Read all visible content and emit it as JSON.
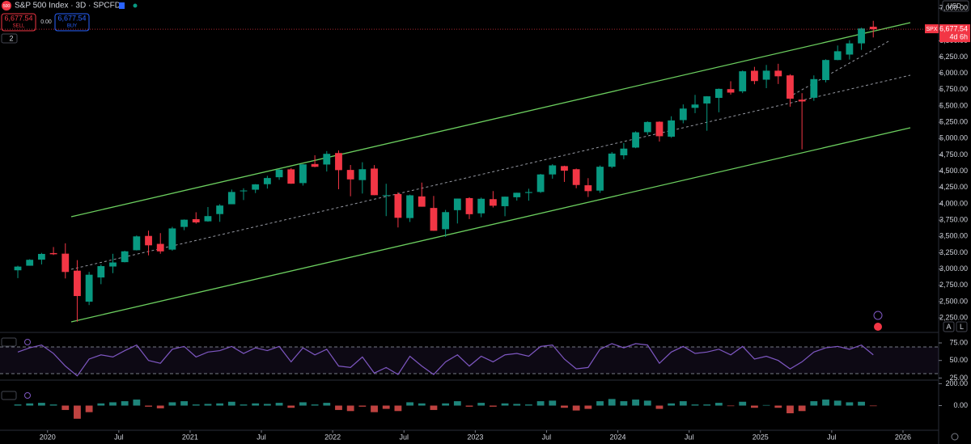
{
  "header": {
    "logo": "500",
    "title": "S&P 500 Index · 3D · SPCFD",
    "sell_price": "6,677.54",
    "sell": "SELL",
    "spread": "0.00",
    "buy_price": "6,677.54",
    "buy": "BUY",
    "indicator_count": "2",
    "currency": "USD",
    "symbol_tag": "SPX",
    "last_price": "6,677.54",
    "countdown": "4d 6h",
    "scale_auto": "A",
    "scale_log": "L"
  },
  "chart_data": [
    {
      "type": "candlestick",
      "up_color": "#089981",
      "down_color": "#f23645",
      "x": [
        "2019-10",
        "2019-11",
        "2019-12",
        "2020-01",
        "2020-02",
        "2020-03",
        "2020-04",
        "2020-05",
        "2020-06",
        "2020-07",
        "2020-08",
        "2020-09",
        "2020-10",
        "2020-11",
        "2020-12",
        "2021-01",
        "2021-02",
        "2021-03",
        "2021-04",
        "2021-05",
        "2021-06",
        "2021-07",
        "2021-08",
        "2021-09",
        "2021-10",
        "2021-11",
        "2021-12",
        "2022-01",
        "2022-02",
        "2022-03",
        "2022-04",
        "2022-05",
        "2022-06",
        "2022-07",
        "2022-08",
        "2022-09",
        "2022-10",
        "2022-11",
        "2022-12",
        "2023-01",
        "2023-02",
        "2023-03",
        "2023-04",
        "2023-05",
        "2023-06",
        "2023-07",
        "2023-08",
        "2023-09",
        "2023-10",
        "2023-11",
        "2023-12",
        "2024-01",
        "2024-02",
        "2024-03",
        "2024-04",
        "2024-05",
        "2024-06",
        "2024-07",
        "2024-08",
        "2024-09",
        "2024-10",
        "2024-11",
        "2024-12",
        "2025-01",
        "2025-02",
        "2025-03",
        "2025-04",
        "2025-05",
        "2025-06",
        "2025-07",
        "2025-08",
        "2025-09",
        "2025-10"
      ],
      "open": [
        2980,
        3050,
        3143,
        3244,
        3235,
        2974,
        2499,
        2870,
        3038,
        3105,
        3288,
        3507,
        3385,
        3297,
        3645,
        3764,
        3731,
        3842,
        3993,
        4191,
        4216,
        4300,
        4407,
        4528,
        4317,
        4610,
        4602,
        4778,
        4519,
        4363,
        4540,
        4130,
        4149,
        3781,
        4113,
        3936,
        3610,
        3902,
        4087,
        3853,
        4071,
        3963,
        4100,
        4166,
        4181,
        4450,
        4578,
        4530,
        4284,
        4202,
        4568,
        4743,
        4862,
        5098,
        5258,
        5029,
        5283,
        5471,
        5538,
        5624,
        5758,
        5724,
        6040,
        5903,
        6041,
        5969,
        5597,
        5626,
        5897,
        6205,
        6288,
        6460,
        6715
      ],
      "high": [
        3050,
        3150,
        3247,
        3337,
        3394,
        3136,
        2955,
        3068,
        3233,
        3280,
        3514,
        3588,
        3550,
        3646,
        3760,
        3870,
        3950,
        3994,
        4218,
        4238,
        4302,
        4429,
        4537,
        4546,
        4608,
        4744,
        4808,
        4818,
        4595,
        4637,
        4593,
        4307,
        4177,
        4140,
        4325,
        4120,
        3906,
        4080,
        4101,
        4095,
        4195,
        4111,
        4170,
        4231,
        4458,
        4607,
        4584,
        4541,
        4393,
        4587,
        4794,
        4931,
        5111,
        5265,
        5264,
        5342,
        5524,
        5670,
        5651,
        5768,
        5879,
        6045,
        6100,
        6129,
        6147,
        5987,
        5696,
        5969,
        6216,
        6427,
        6508,
        6700,
        6806
      ],
      "low": [
        2860,
        3050,
        3070,
        3214,
        2855,
        2192,
        2447,
        2767,
        2936,
        3101,
        3284,
        3209,
        3234,
        3280,
        3595,
        3695,
        3725,
        3723,
        3993,
        4057,
        4164,
        4233,
        4368,
        4306,
        4279,
        4560,
        4495,
        4223,
        4115,
        4157,
        4131,
        3811,
        3637,
        3721,
        3955,
        3584,
        3492,
        3698,
        3765,
        3794,
        3943,
        3809,
        4049,
        4048,
        4166,
        4385,
        4335,
        4238,
        4104,
        4168,
        4547,
        4683,
        4853,
        5057,
        4954,
        5011,
        5234,
        5390,
        5120,
        5403,
        5674,
        5697,
        5833,
        5773,
        5837,
        5489,
        4835,
        5579,
        5862,
        6201,
        6212,
        6360,
        6551
      ],
      "close": [
        3037,
        3141,
        3231,
        3226,
        2954,
        2585,
        2912,
        3044,
        3100,
        3271,
        3500,
        3363,
        3270,
        3622,
        3756,
        3714,
        3811,
        3973,
        4181,
        4204,
        4298,
        4395,
        4523,
        4308,
        4605,
        4567,
        4766,
        4516,
        4374,
        4530,
        4132,
        4132,
        3785,
        4130,
        3955,
        3586,
        3872,
        4080,
        3840,
        4077,
        3970,
        4109,
        4169,
        4180,
        4450,
        4589,
        4508,
        4288,
        4194,
        4568,
        4770,
        4846,
        5096,
        5254,
        5036,
        5278,
        5460,
        5522,
        5648,
        5762,
        5705,
        6032,
        5882,
        6041,
        5955,
        5612,
        5569,
        5912,
        6205,
        6339,
        6460,
        6688,
        6677.54
      ],
      "xlim": [
        "2019-09",
        "2026-04"
      ],
      "xticks": [
        {
          "value": "2020-01",
          "label": "2020"
        },
        {
          "value": "2020-07",
          "label": "Jul"
        },
        {
          "value": "2021-01",
          "label": "2021"
        },
        {
          "value": "2021-07",
          "label": "Jul"
        },
        {
          "value": "2022-01",
          "label": "2022"
        },
        {
          "value": "2022-07",
          "label": "Jul"
        },
        {
          "value": "2023-01",
          "label": "2023"
        },
        {
          "value": "2023-07",
          "label": "Jul"
        },
        {
          "value": "2024-01",
          "label": "2024"
        },
        {
          "value": "2024-07",
          "label": "Jul"
        },
        {
          "value": "2025-01",
          "label": "2025"
        },
        {
          "value": "2025-07",
          "label": "Jul"
        },
        {
          "value": "2026-01",
          "label": "2026"
        }
      ],
      "ylim": [
        2040,
        7125
      ],
      "yticks": [
        {
          "value": 2250,
          "label": "2,250.00"
        },
        {
          "value": 2500,
          "label": "2,500.00"
        },
        {
          "value": 2750,
          "label": "2,750.00"
        },
        {
          "value": 3000,
          "label": "3,000.00"
        },
        {
          "value": 3250,
          "label": "3,250.00"
        },
        {
          "value": 3500,
          "label": "3,500.00"
        },
        {
          "value": 3750,
          "label": "3,750.00"
        },
        {
          "value": 4000,
          "label": "4,000.00"
        },
        {
          "value": 4250,
          "label": "4,250.00"
        },
        {
          "value": 4500,
          "label": "4,500.00"
        },
        {
          "value": 4750,
          "label": "4,750.00"
        },
        {
          "value": 5000,
          "label": "5,000.00"
        },
        {
          "value": 5250,
          "label": "5,250.00"
        },
        {
          "value": 5500,
          "label": "5,500.00"
        },
        {
          "value": 5750,
          "label": "5,750.00"
        },
        {
          "value": 6000,
          "label": "6,000.00"
        },
        {
          "value": 6250,
          "label": "6,250.00"
        },
        {
          "value": 6500,
          "label": "6,500.00"
        },
        {
          "value": 7000,
          "label": "7,000.00"
        }
      ]
    },
    {
      "type": "line",
      "color": "#7e57c2",
      "values": [
        62,
        68,
        72,
        60,
        42,
        28,
        52,
        58,
        55,
        64,
        72,
        50,
        46,
        66,
        70,
        55,
        62,
        64,
        70,
        60,
        68,
        64,
        70,
        48,
        68,
        58,
        66,
        42,
        40,
        55,
        32,
        40,
        30,
        56,
        42,
        30,
        48,
        58,
        42,
        56,
        48,
        58,
        60,
        56,
        70,
        72,
        52,
        38,
        40,
        66,
        74,
        68,
        74,
        72,
        46,
        62,
        70,
        60,
        62,
        66,
        58,
        70,
        52,
        56,
        50,
        38,
        48,
        62,
        68,
        70,
        66,
        72,
        58
      ],
      "ylim": [
        22,
        90
      ],
      "yticks": [
        {
          "value": 25,
          "label": "25.00"
        },
        {
          "value": 50,
          "label": "50.00"
        },
        {
          "value": 75,
          "label": "75.00"
        }
      ]
    },
    {
      "type": "bar",
      "up_color": "#26a69a",
      "down_color": "#ef5350",
      "values": [
        10,
        20,
        25,
        10,
        -40,
        -120,
        -60,
        20,
        30,
        40,
        55,
        -10,
        -25,
        30,
        40,
        10,
        15,
        20,
        35,
        10,
        20,
        15,
        25,
        -20,
        30,
        10,
        25,
        -40,
        -50,
        -10,
        -60,
        -30,
        -50,
        30,
        20,
        -40,
        20,
        40,
        -10,
        25,
        -10,
        20,
        15,
        10,
        40,
        45,
        -20,
        -45,
        -30,
        40,
        60,
        40,
        55,
        45,
        -30,
        20,
        40,
        10,
        10,
        25,
        -5,
        35,
        -20,
        5,
        -20,
        -70,
        -50,
        40,
        55,
        45,
        30,
        35,
        -5
      ],
      "ylim": [
        -225,
        225
      ],
      "yticks": [
        {
          "value": 200,
          "label": "200.00"
        },
        {
          "value": 0,
          "label": "0.00"
        }
      ]
    }
  ]
}
